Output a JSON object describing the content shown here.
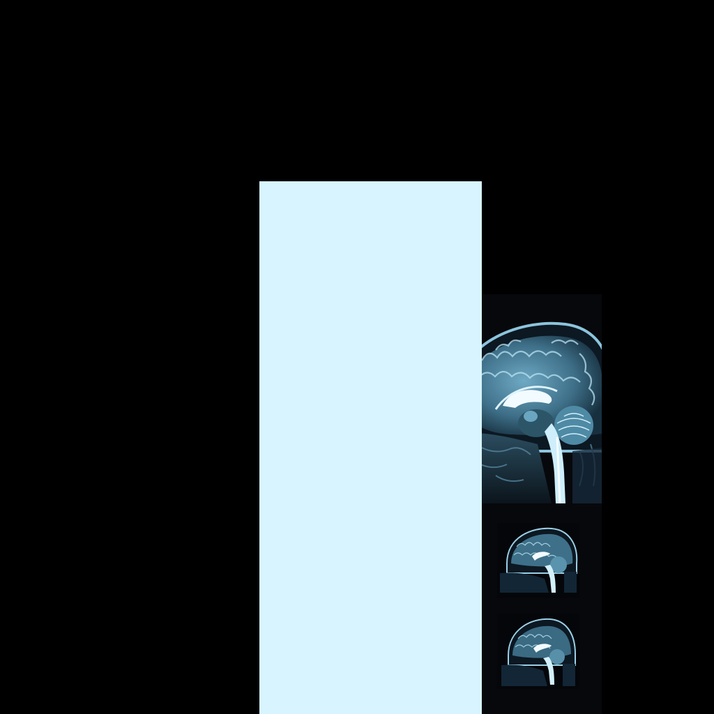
{
  "colors": {
    "background": "#000000",
    "light_panel": "#d8f4ff",
    "viewer_background": "#07080c",
    "scan_tint": "#9fd3ea",
    "scan_highlight": "#f2fbff"
  },
  "viewer": {
    "images": [
      {
        "name": "mri-sagittal-main",
        "kind": "mri-brain-sagittal-icon"
      },
      {
        "name": "mri-sagittal-thumb-1",
        "kind": "mri-brain-sagittal-icon"
      },
      {
        "name": "mri-sagittal-thumb-2",
        "kind": "mri-brain-sagittal-icon"
      }
    ]
  }
}
